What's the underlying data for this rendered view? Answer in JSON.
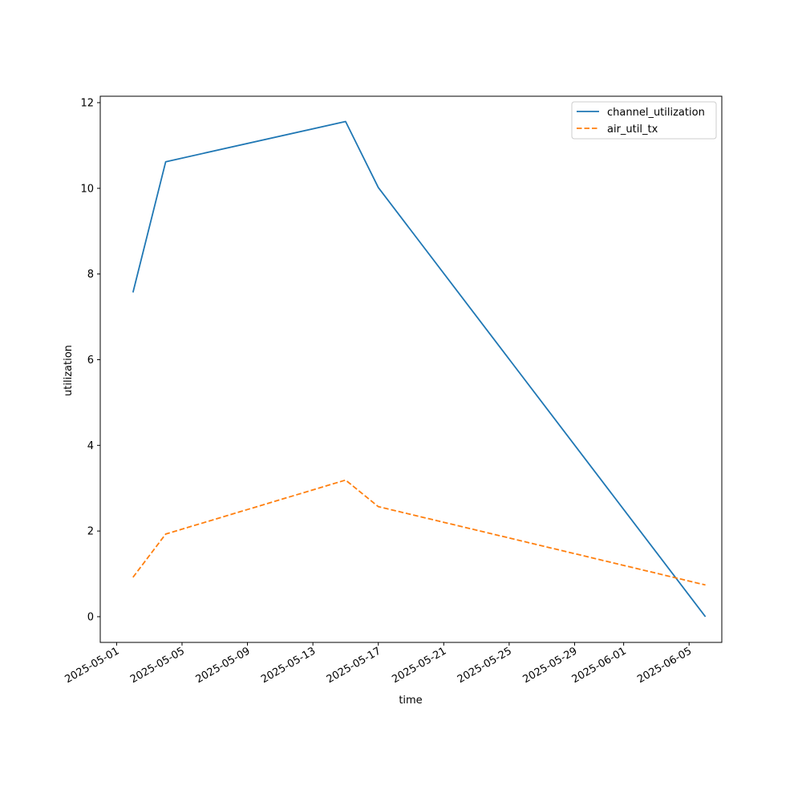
{
  "chart_data": {
    "type": "line",
    "title": "",
    "xlabel": "time",
    "ylabel": "utilization",
    "x": [
      "2025-05-02",
      "2025-05-04",
      "2025-05-15",
      "2025-05-17",
      "2025-06-06"
    ],
    "series": [
      {
        "name": "channel_utilization",
        "values": [
          7.57,
          10.62,
          11.56,
          10.02,
          0.0
        ],
        "color": "#1f77b4",
        "style": "solid"
      },
      {
        "name": "air_util_tx",
        "values": [
          0.92,
          1.93,
          3.19,
          2.57,
          0.74
        ],
        "color": "#ff7f0e",
        "style": "dashed"
      }
    ],
    "xlim": [
      "2025-04-30",
      "2025-06-07"
    ],
    "ylim": [
      -0.6,
      12.15
    ],
    "xticks": [
      "2025-05-01",
      "2025-05-05",
      "2025-05-09",
      "2025-05-13",
      "2025-05-17",
      "2025-05-21",
      "2025-05-25",
      "2025-05-29",
      "2025-06-01",
      "2025-06-05"
    ],
    "yticks": [
      0,
      2,
      4,
      6,
      8,
      10,
      12
    ],
    "grid": false,
    "legend_position": "top-right"
  }
}
